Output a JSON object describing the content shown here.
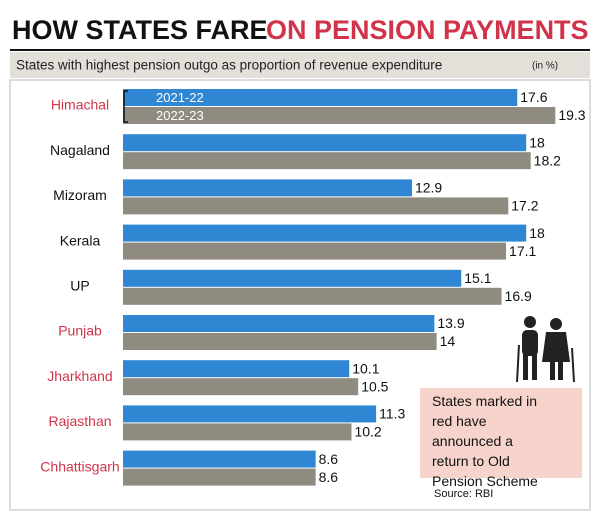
{
  "chart_data": {
    "type": "bar",
    "orientation": "horizontal",
    "title": "HOW STATES FARE",
    "title_highlight": "ON PENSION PAYMENTS",
    "subtitle": "States with highest pension outgo as proportion of revenue expenditure",
    "subtitle_unit": "(in %)",
    "categories": [
      "Himachal",
      "Nagaland",
      "Mizoram",
      "Kerala",
      "UP",
      "Punjab",
      "Jharkhand",
      "Rajasthan",
      "Chhattisgarh"
    ],
    "highlighted": [
      true,
      false,
      false,
      false,
      false,
      true,
      true,
      true,
      true
    ],
    "highlight_color": "#d1344a",
    "series": [
      {
        "name": "2021-22",
        "color": "#2f87d3",
        "values": [
          17.6,
          18,
          12.9,
          18,
          15.1,
          13.9,
          10.1,
          11.3,
          8.6
        ]
      },
      {
        "name": "2022-23",
        "color": "#8f8b80",
        "values": [
          19.3,
          18.2,
          17.2,
          17.1,
          16.9,
          14,
          10.5,
          10.2,
          8.6
        ]
      }
    ],
    "xlim": [
      0,
      20
    ],
    "note": "States marked in red have announced a return to Old Pension Scheme",
    "source": "Source: RBI"
  }
}
